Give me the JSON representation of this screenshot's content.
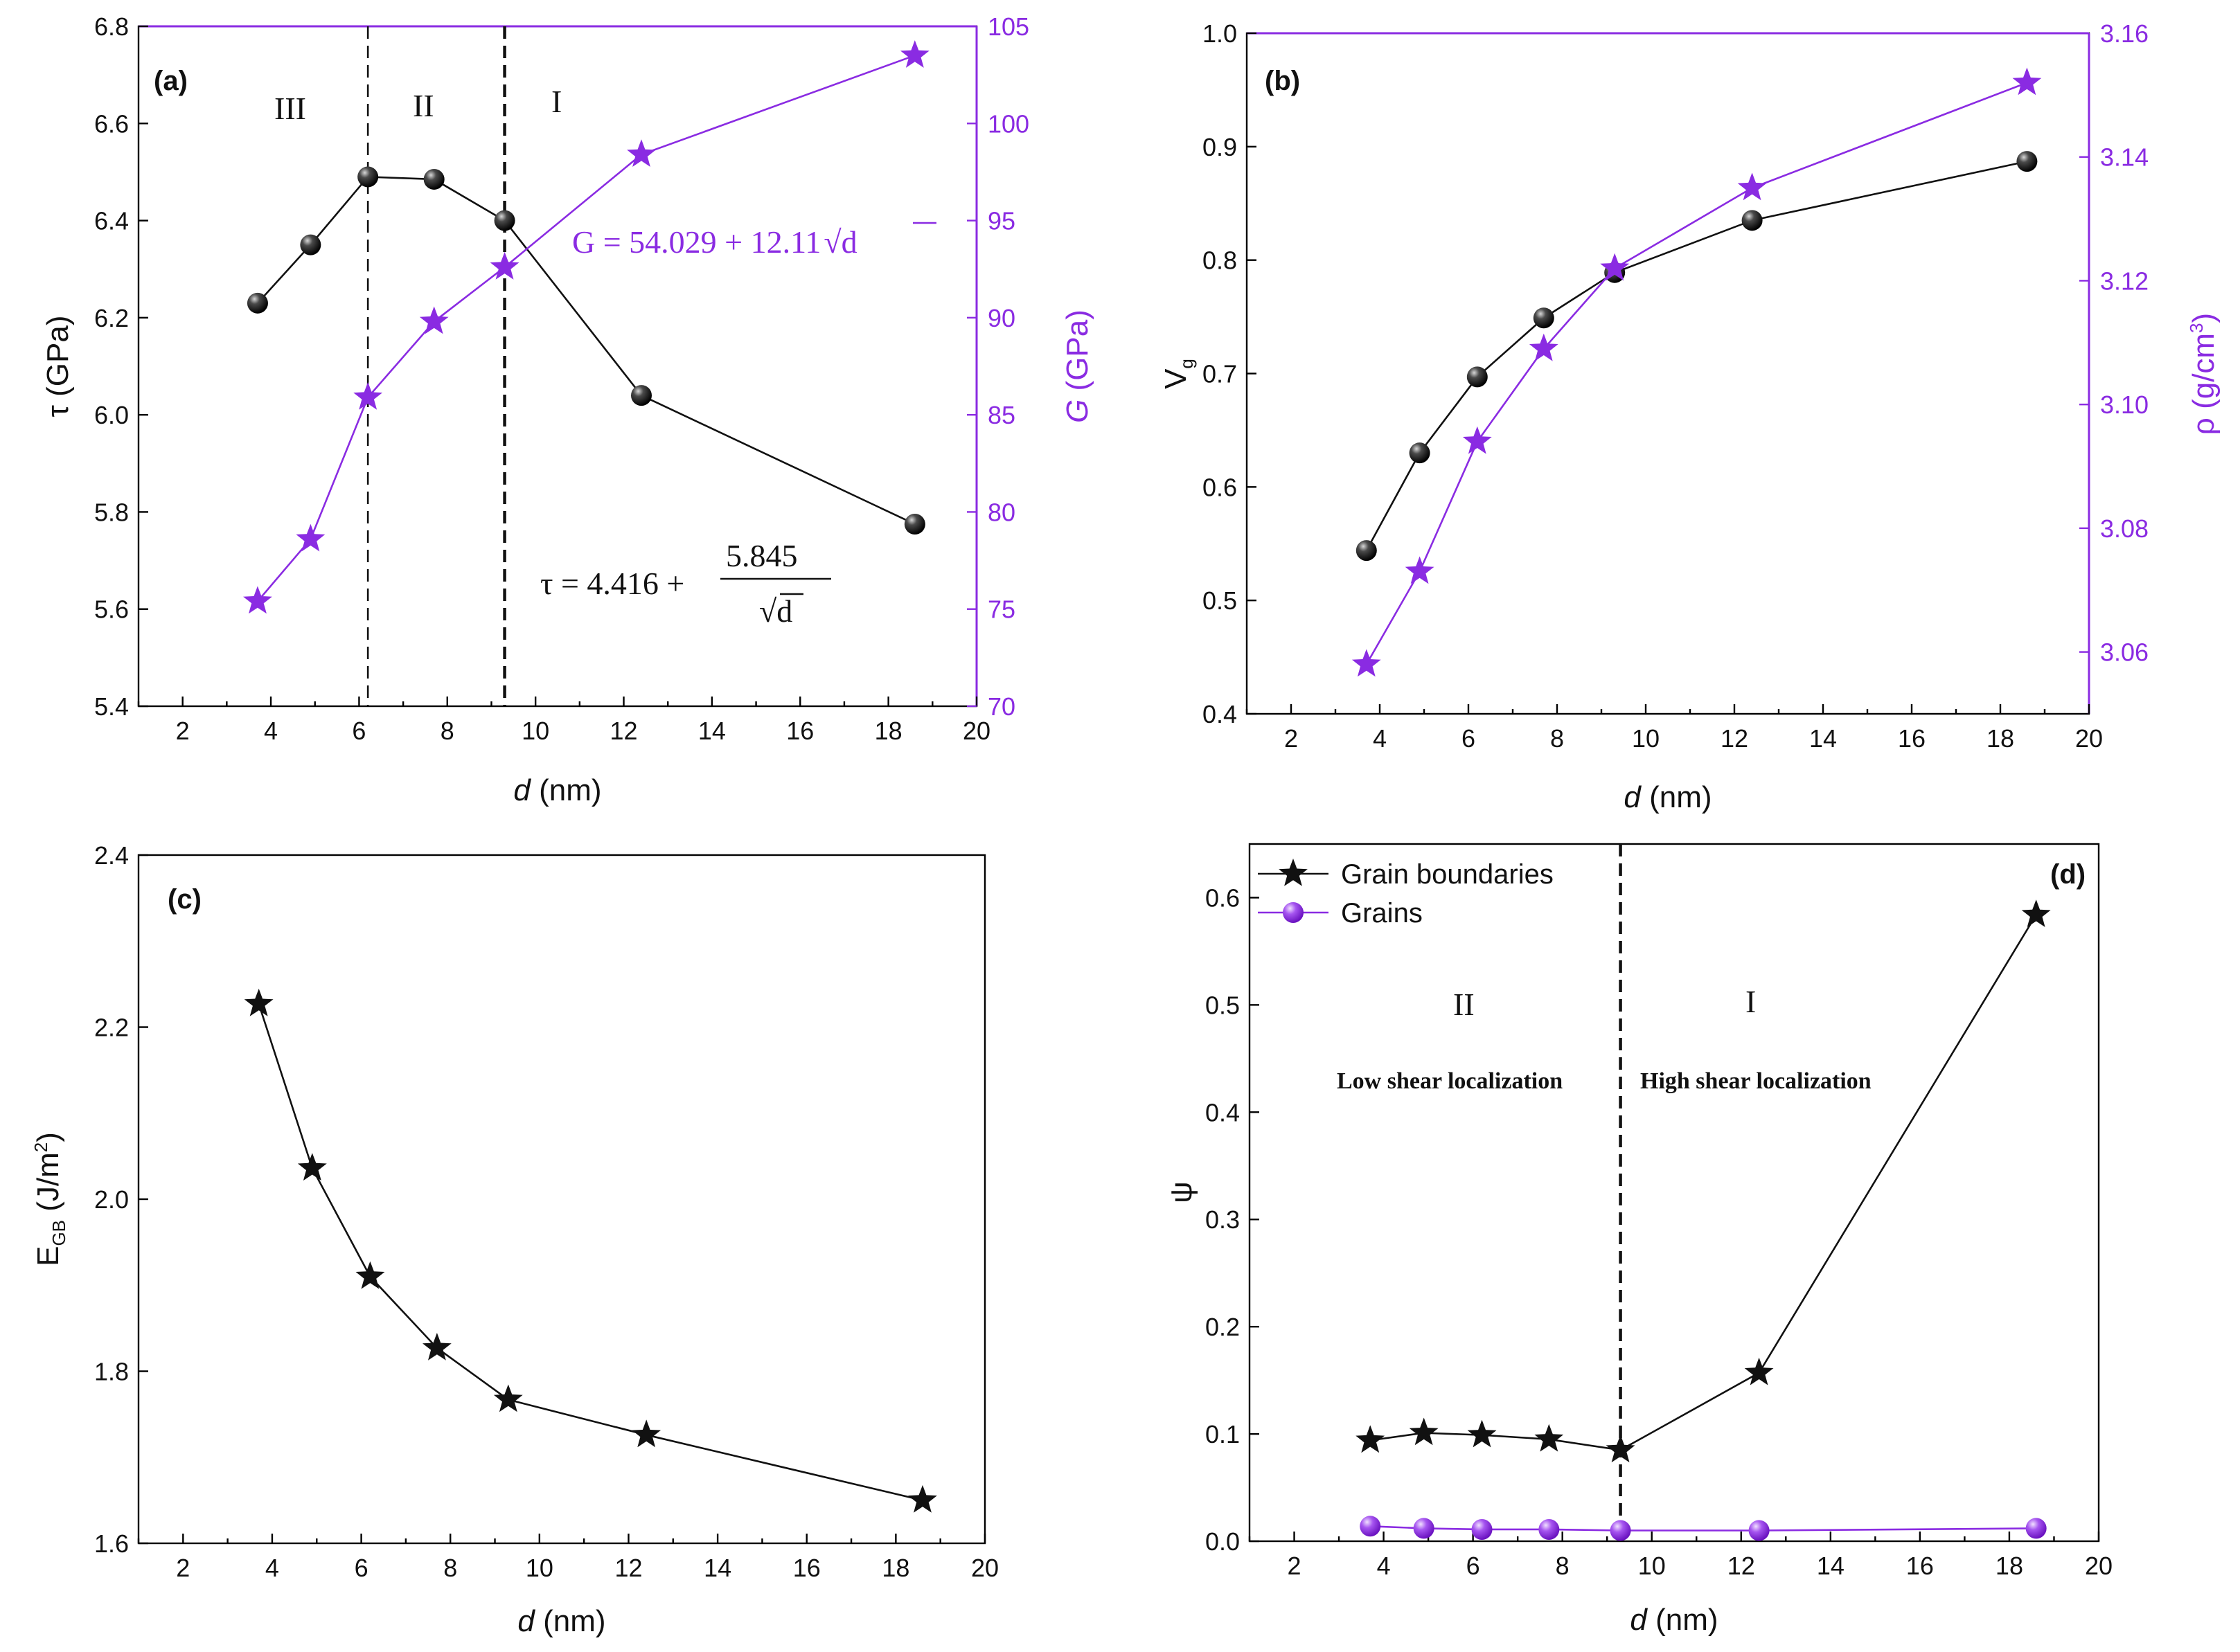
{
  "colors": {
    "black_series": "#111111",
    "purple_series": "#8a2be2"
  },
  "chart_data": [
    {
      "id": "a",
      "type": "line",
      "panel_label": "(a)",
      "xlabel_italic": "d",
      "xlabel_unit": " (nm)",
      "ylabel": "τ (GPa)",
      "y2label_italic": "G",
      "y2label_unit": " (GPa)",
      "xlim": [
        1,
        20
      ],
      "ylim": [
        5.4,
        6.8
      ],
      "y2lim": [
        70,
        105
      ],
      "xticks": [
        2,
        4,
        6,
        8,
        10,
        12,
        14,
        16,
        18,
        20
      ],
      "yticks": [
        "5.4",
        "5.6",
        "5.8",
        "6.0",
        "6.2",
        "6.4",
        "6.6",
        "6.8"
      ],
      "y2ticks": [
        "70",
        "75",
        "80",
        "85",
        "90",
        "95",
        "100",
        "105"
      ],
      "series": [
        {
          "name": "τ",
          "axis": "left",
          "marker": "sphere",
          "color": "#111111",
          "x": [
            3.7,
            4.9,
            6.2,
            7.7,
            9.3,
            12.4,
            18.6
          ],
          "y": [
            6.23,
            6.35,
            6.49,
            6.485,
            6.4,
            6.04,
            5.775
          ]
        },
        {
          "name": "G",
          "axis": "right",
          "marker": "star",
          "color": "#8a2be2",
          "x": [
            3.7,
            4.9,
            6.2,
            7.7,
            9.3,
            12.4,
            18.6
          ],
          "y": [
            75.4,
            78.6,
            85.9,
            89.8,
            92.6,
            98.4,
            103.5
          ]
        }
      ],
      "vlines": [
        6.2,
        9.3
      ],
      "regions": [
        "III",
        "II",
        "I"
      ],
      "eq_tau_lhs": "τ = 4.416 +",
      "eq_tau_num": "5.845",
      "eq_tau_den": "d",
      "eq_G": "G = 54.029 + 12.11",
      "eq_G_rad": "d"
    },
    {
      "id": "b",
      "type": "line",
      "panel_label": "(b)",
      "xlabel_italic": "d",
      "xlabel_unit": " (nm)",
      "ylabel": "V",
      "ylabel_sub": "g",
      "y2label": "ρ (g/cm",
      "y2label_sup": "3",
      "y2label_end": ")",
      "xlim": [
        1,
        20
      ],
      "ylim": [
        0.4,
        1.0
      ],
      "y2lim": [
        3.05,
        3.16
      ],
      "xticks": [
        2,
        4,
        6,
        8,
        10,
        12,
        14,
        16,
        18,
        20
      ],
      "yticks": [
        "0.4",
        "0.5",
        "0.6",
        "0.7",
        "0.8",
        "0.9",
        "1.0"
      ],
      "y2ticks": [
        "3.06",
        "3.08",
        "3.10",
        "3.12",
        "3.14",
        "3.16"
      ],
      "series": [
        {
          "name": "Vg",
          "axis": "left",
          "marker": "sphere",
          "color": "#111111",
          "x": [
            3.7,
            4.9,
            6.2,
            7.7,
            9.3,
            12.4,
            18.6
          ],
          "y": [
            0.544,
            0.63,
            0.697,
            0.749,
            0.789,
            0.835,
            0.887
          ]
        },
        {
          "name": "ρ",
          "axis": "right",
          "marker": "star",
          "color": "#8a2be2",
          "x": [
            3.7,
            4.9,
            6.2,
            7.7,
            9.3,
            12.4,
            18.6
          ],
          "y": [
            3.058,
            3.073,
            3.094,
            3.109,
            3.122,
            3.135,
            3.152
          ]
        }
      ]
    },
    {
      "id": "c",
      "type": "line",
      "panel_label": "(c)",
      "xlabel_italic": "d",
      "xlabel_unit": " (nm)",
      "ylabel": "E",
      "ylabel_sub": "GB",
      "ylabel_unit": " (J/m",
      "ylabel_sup": "2",
      "ylabel_end": ")",
      "xlim": [
        1,
        20
      ],
      "ylim": [
        1.6,
        2.4
      ],
      "xticks": [
        2,
        4,
        6,
        8,
        10,
        12,
        14,
        16,
        18,
        20
      ],
      "yticks": [
        "1.6",
        "1.8",
        "2.0",
        "2.2",
        "2.4"
      ],
      "series": [
        {
          "name": "EGB",
          "axis": "left",
          "marker": "star",
          "color": "#111111",
          "x": [
            3.7,
            4.9,
            6.2,
            7.7,
            9.3,
            12.4,
            18.6
          ],
          "y": [
            2.227,
            2.036,
            1.91,
            1.827,
            1.767,
            1.726,
            1.65
          ]
        }
      ]
    },
    {
      "id": "d",
      "type": "line",
      "panel_label": "(d)",
      "xlabel_italic": "d",
      "xlabel_unit": " (nm)",
      "ylabel": "ψ",
      "xlim": [
        1,
        20
      ],
      "ylim": [
        0.0,
        0.65
      ],
      "xticks": [
        2,
        4,
        6,
        8,
        10,
        12,
        14,
        16,
        18,
        20
      ],
      "yticks": [
        "0.0",
        "0.1",
        "0.2",
        "0.3",
        "0.4",
        "0.5",
        "0.6"
      ],
      "series": [
        {
          "name": "Grain boundaries",
          "axis": "left",
          "marker": "star",
          "color": "#111111",
          "x": [
            3.7,
            4.9,
            6.2,
            7.7,
            9.3,
            12.4,
            18.6
          ],
          "y": [
            0.094,
            0.101,
            0.099,
            0.095,
            0.085,
            0.157,
            0.584
          ]
        },
        {
          "name": "Grains",
          "axis": "left",
          "marker": "sphere",
          "color": "#8a2be2",
          "x": [
            3.7,
            4.9,
            6.2,
            7.7,
            9.3,
            12.4,
            18.6
          ],
          "y": [
            0.014,
            0.012,
            0.011,
            0.011,
            0.01,
            0.01,
            0.012
          ]
        }
      ],
      "vlines": [
        9.3
      ],
      "regions": [
        "II",
        "I"
      ],
      "region_notes": [
        "Low shear localization",
        "High shear localization"
      ]
    }
  ]
}
